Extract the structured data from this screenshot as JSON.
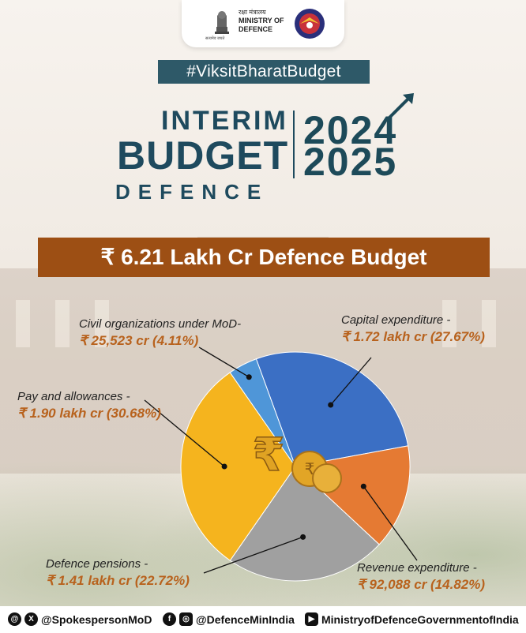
{
  "header": {
    "ministry_hindi": "रक्षा मंत्रालय",
    "ministry_line1": "MINISTRY OF",
    "ministry_line2": "DEFENCE",
    "emblem_caption": "सत्यमेव जयते",
    "hashtag": "#ViksitBharatBudget",
    "title_interim": "INTERIM",
    "title_budget": "BUDGET",
    "title_defence": "DEFENCE",
    "year_start": "2024",
    "year_end": "2025",
    "banner": "₹ 6.21 Lakh Cr Defence Budget"
  },
  "colors": {
    "capital": "#3b6fc4",
    "revenue": "#e57a33",
    "pensions": "#a0a0a0",
    "pay": "#f5b41e",
    "civil": "#4f96d8",
    "banner": "#9d4f14",
    "hashtag": "#2e5968",
    "value_text": "#b8621d"
  },
  "chart_data": {
    "type": "pie",
    "title": "₹ 6.21 Lakh Cr Defence Budget",
    "slices": [
      {
        "label": "Capital expenditure -",
        "value_text": "₹ 1.72 lakh cr (27.67%)",
        "percent": 27.67,
        "color_key": "capital"
      },
      {
        "label": "Revenue expenditure -",
        "value_text": "₹ 92,088 cr (14.82%)",
        "percent": 14.82,
        "color_key": "revenue"
      },
      {
        "label": "Defence pensions -",
        "value_text": "₹ 1.41 lakh cr (22.72%)",
        "percent": 22.72,
        "color_key": "pensions"
      },
      {
        "label": "Pay and allowances -",
        "value_text": "₹ 1.90 lakh cr (30.68%)",
        "percent": 30.68,
        "color_key": "pay"
      },
      {
        "label": "Civil organizations under MoD-",
        "value_text": "₹ 25,523 cr (4.11%)",
        "percent": 4.11,
        "color_key": "civil"
      }
    ]
  },
  "footer": {
    "twitter_handle": "@SpokespersonMoD",
    "facebook_instagram_handle": "@DefenceMinIndia",
    "youtube_handle": "MinistryofDefenceGovernmentofIndia"
  }
}
